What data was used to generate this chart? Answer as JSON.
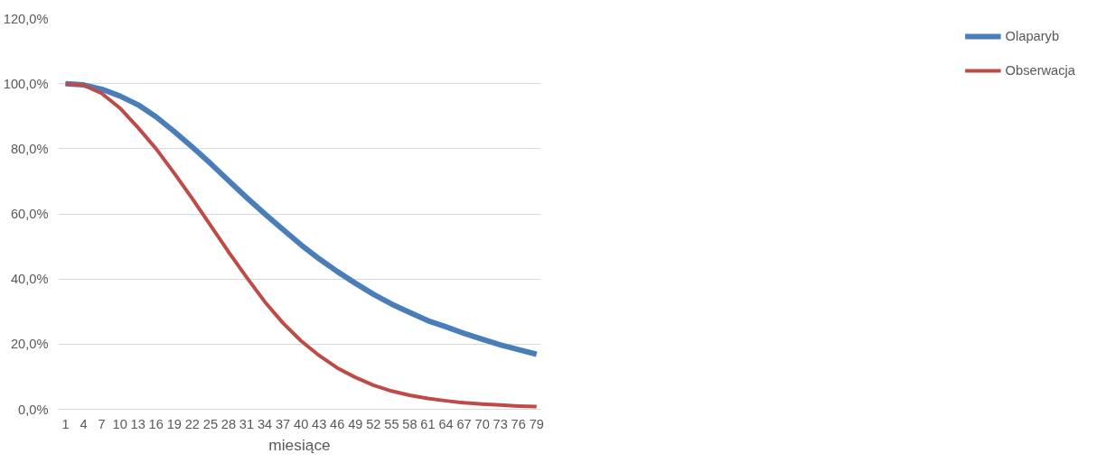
{
  "chart_data": {
    "type": "line",
    "xlabel": "miesiące",
    "x": [
      1,
      4,
      7,
      10,
      13,
      16,
      19,
      22,
      25,
      28,
      31,
      34,
      37,
      40,
      43,
      46,
      49,
      52,
      55,
      58,
      61,
      64,
      67,
      70,
      73,
      76,
      79
    ],
    "series": [
      {
        "name": "Olaparyb",
        "color": "#4a7ebb",
        "values": [
          100,
          99.6,
          98.3,
          96.2,
          93.5,
          89.8,
          85.3,
          80.5,
          75.5,
          70.2,
          65,
          60,
          55.2,
          50.5,
          46.2,
          42.3,
          38.7,
          35.3,
          32.3,
          29.7,
          27.2,
          25.3,
          23.3,
          21.5,
          19.8,
          18.3,
          16.9
        ]
      },
      {
        "name": "Obserwacja",
        "color": "#be4b48",
        "values": [
          100,
          99.5,
          97,
          92.5,
          86.5,
          80,
          72.5,
          64.7,
          56.5,
          48.3,
          40.5,
          33,
          26.5,
          21,
          16.5,
          12.7,
          9.8,
          7.4,
          5.6,
          4.3,
          3.3,
          2.6,
          2,
          1.6,
          1.3,
          1,
          0.8
        ]
      }
    ],
    "xlim": [
      -0.2,
      79.7
    ],
    "xticks": [
      1,
      4,
      7,
      10,
      13,
      16,
      19,
      22,
      25,
      28,
      31,
      34,
      37,
      40,
      43,
      46,
      49,
      52,
      55,
      58,
      61,
      64,
      67,
      70,
      73,
      76,
      79
    ],
    "ylim": [
      0,
      120
    ],
    "yticks": [
      {
        "value": 0,
        "label": "0,0%"
      },
      {
        "value": 20,
        "label": "20,0%"
      },
      {
        "value": 40,
        "label": "40,0%"
      },
      {
        "value": 60,
        "label": "60,0%"
      },
      {
        "value": 80,
        "label": "80,0%"
      },
      {
        "value": 100,
        "label": "100,0%"
      },
      {
        "value": 120,
        "label": "120,0%"
      }
    ],
    "grid": "y",
    "legend": "right",
    "marker": "none",
    "line_style": "solid"
  }
}
